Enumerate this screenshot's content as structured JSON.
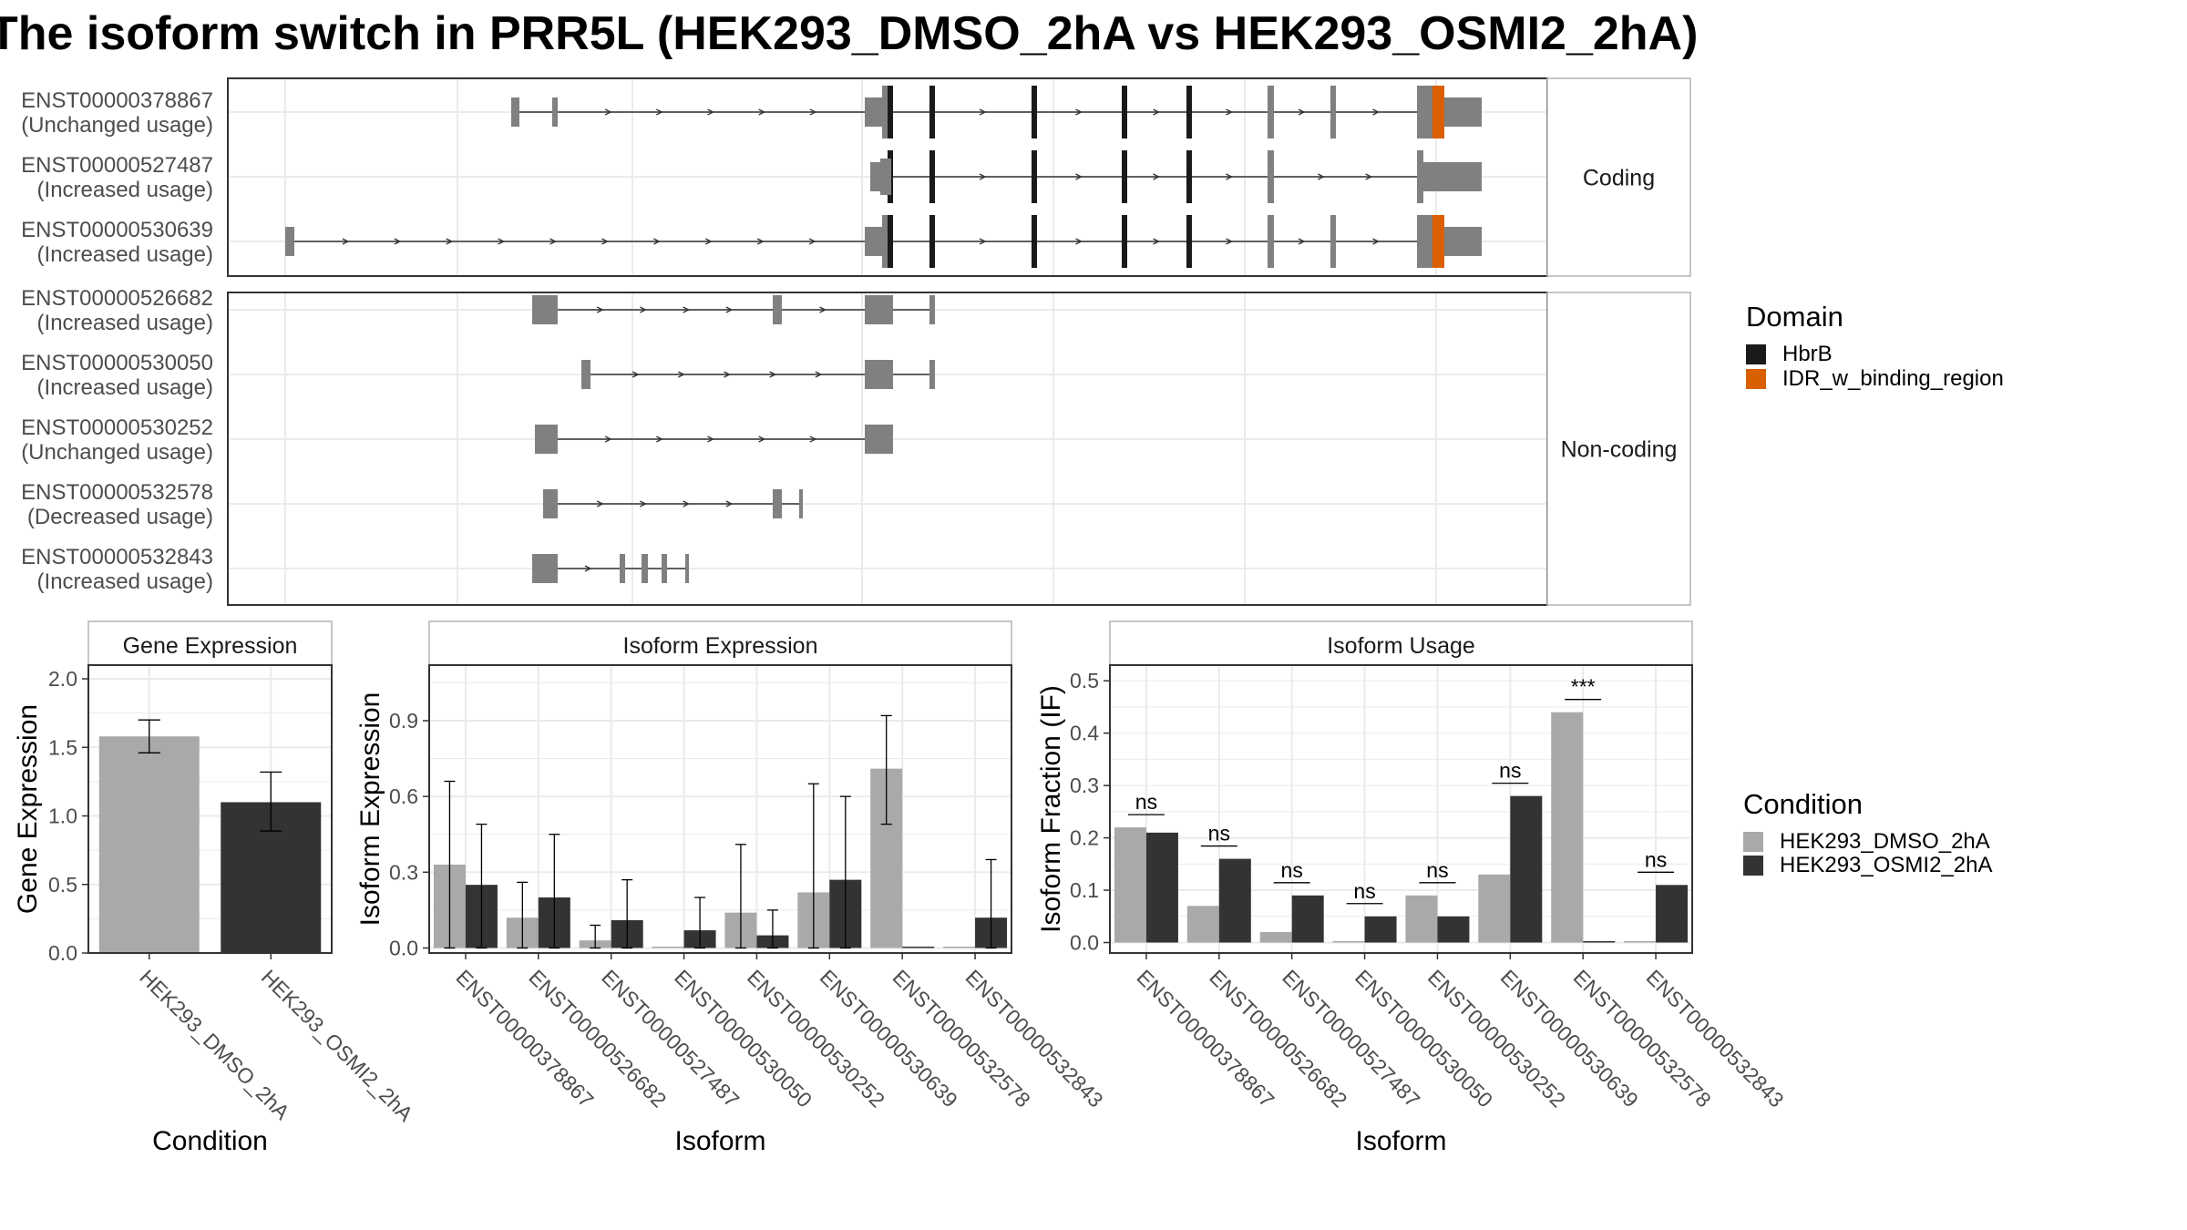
{
  "title": "The isoform switch in PRR5L (HEK293_DMSO_2hA vs HEK293_OSMI2_2hA)",
  "colors": {
    "exon_grey": "#808080",
    "hbrb": "#1a1a1a",
    "idr": "#d95f02",
    "dmso": "#a9a9a9",
    "osmi": "#333333",
    "panel_border": "#333333",
    "strip_border": "#b3b3b3",
    "grid": "#ebebeb"
  },
  "structure_panel": {
    "groups": [
      {
        "label": "Coding",
        "transcripts": [
          {
            "id": "ENST00000378867",
            "usage": "(Unchanged usage)"
          },
          {
            "id": "ENST00000527487",
            "usage": "(Increased usage)"
          },
          {
            "id": "ENST00000530639",
            "usage": "(Increased usage)"
          }
        ]
      },
      {
        "label": "Non-coding",
        "transcripts": [
          {
            "id": "ENST00000526682",
            "usage": "(Increased usage)"
          },
          {
            "id": "ENST00000530050",
            "usage": "(Increased usage)"
          },
          {
            "id": "ENST00000530252",
            "usage": "(Unchanged usage)"
          },
          {
            "id": "ENST00000532578",
            "usage": "(Decreased usage)"
          },
          {
            "id": "ENST00000532843",
            "usage": "(Increased usage)"
          }
        ]
      }
    ],
    "legend": {
      "title": "Domain",
      "items": [
        {
          "label": "HbrB",
          "color": "#1a1a1a"
        },
        {
          "label": "IDR_w_binding_region",
          "color": "#d95f02"
        }
      ]
    }
  },
  "chart_data": [
    {
      "type": "bar",
      "title": "Gene Expression",
      "xlabel": "Condition",
      "ylabel": "Gene Expression",
      "ylim": [
        0,
        2.1
      ],
      "yticks": [
        0.0,
        0.5,
        1.0,
        1.5,
        2.0
      ],
      "ytick_labels": [
        "0.0",
        "0.5",
        "1.0",
        "1.5",
        "2.0"
      ],
      "categories": [
        "HEK293_DMSO_2hA",
        "HEK293_OSMI2_2hA"
      ],
      "values": [
        1.58,
        1.1
      ],
      "errors": [
        [
          1.46,
          1.7
        ],
        [
          0.89,
          1.32
        ]
      ]
    },
    {
      "type": "bar",
      "title": "Isoform Expression",
      "xlabel": "Isoform",
      "ylabel": "Isoform Expression",
      "ylim": [
        -0.02,
        1.12
      ],
      "yticks": [
        0.0,
        0.3,
        0.6,
        0.9
      ],
      "ytick_labels": [
        "0.0",
        "0.3",
        "0.6",
        "0.9"
      ],
      "categories": [
        "ENST00000378867",
        "ENST00000526682",
        "ENST00000527487",
        "ENST00000530050",
        "ENST00000530252",
        "ENST00000530639",
        "ENST00000532578",
        "ENST00000532843"
      ],
      "series": [
        {
          "name": "HEK293_DMSO_2hA",
          "values": [
            0.33,
            0.12,
            0.03,
            0.0,
            0.14,
            0.22,
            0.71,
            0.0
          ],
          "errors": [
            [
              0.0,
              0.66
            ],
            [
              0.0,
              0.26
            ],
            [
              0.0,
              0.09
            ],
            null,
            [
              0.0,
              0.41
            ],
            [
              0.0,
              0.65
            ],
            [
              0.49,
              0.92
            ],
            null
          ]
        },
        {
          "name": "HEK293_OSMI2_2hA",
          "values": [
            0.25,
            0.2,
            0.11,
            0.07,
            0.05,
            0.27,
            0.0,
            0.12
          ],
          "errors": [
            [
              0.0,
              0.49
            ],
            [
              0.0,
              0.45
            ],
            [
              0.0,
              0.27
            ],
            [
              0.0,
              0.2
            ],
            [
              0.0,
              0.15
            ],
            [
              0.0,
              0.6
            ],
            null,
            [
              0.0,
              0.35
            ]
          ]
        }
      ]
    },
    {
      "type": "bar",
      "title": "Isoform Usage",
      "xlabel": "Isoform",
      "ylabel": "Isoform Fraction (IF)",
      "ylim": [
        -0.02,
        0.53
      ],
      "yticks": [
        0.0,
        0.1,
        0.2,
        0.3,
        0.4,
        0.5
      ],
      "ytick_labels": [
        "0.0",
        "0.1",
        "0.2",
        "0.3",
        "0.4",
        "0.5"
      ],
      "categories": [
        "ENST00000378867",
        "ENST00000526682",
        "ENST00000527487",
        "ENST00000530050",
        "ENST00000530252",
        "ENST00000530639",
        "ENST00000532578",
        "ENST00000532843"
      ],
      "series": [
        {
          "name": "HEK293_DMSO_2hA",
          "values": [
            0.22,
            0.07,
            0.02,
            0.0,
            0.09,
            0.13,
            0.44,
            0.0
          ]
        },
        {
          "name": "HEK293_OSMI2_2hA",
          "values": [
            0.21,
            0.16,
            0.09,
            0.05,
            0.05,
            0.28,
            0.0,
            0.11
          ]
        }
      ],
      "significance": [
        "ns",
        "ns",
        "ns",
        "ns",
        "ns",
        "ns",
        "***",
        "ns"
      ]
    }
  ],
  "condition_legend": {
    "title": "Condition",
    "items": [
      {
        "label": "HEK293_DMSO_2hA",
        "color": "#a9a9a9"
      },
      {
        "label": "HEK293_OSMI2_2hA",
        "color": "#333333"
      }
    ]
  }
}
